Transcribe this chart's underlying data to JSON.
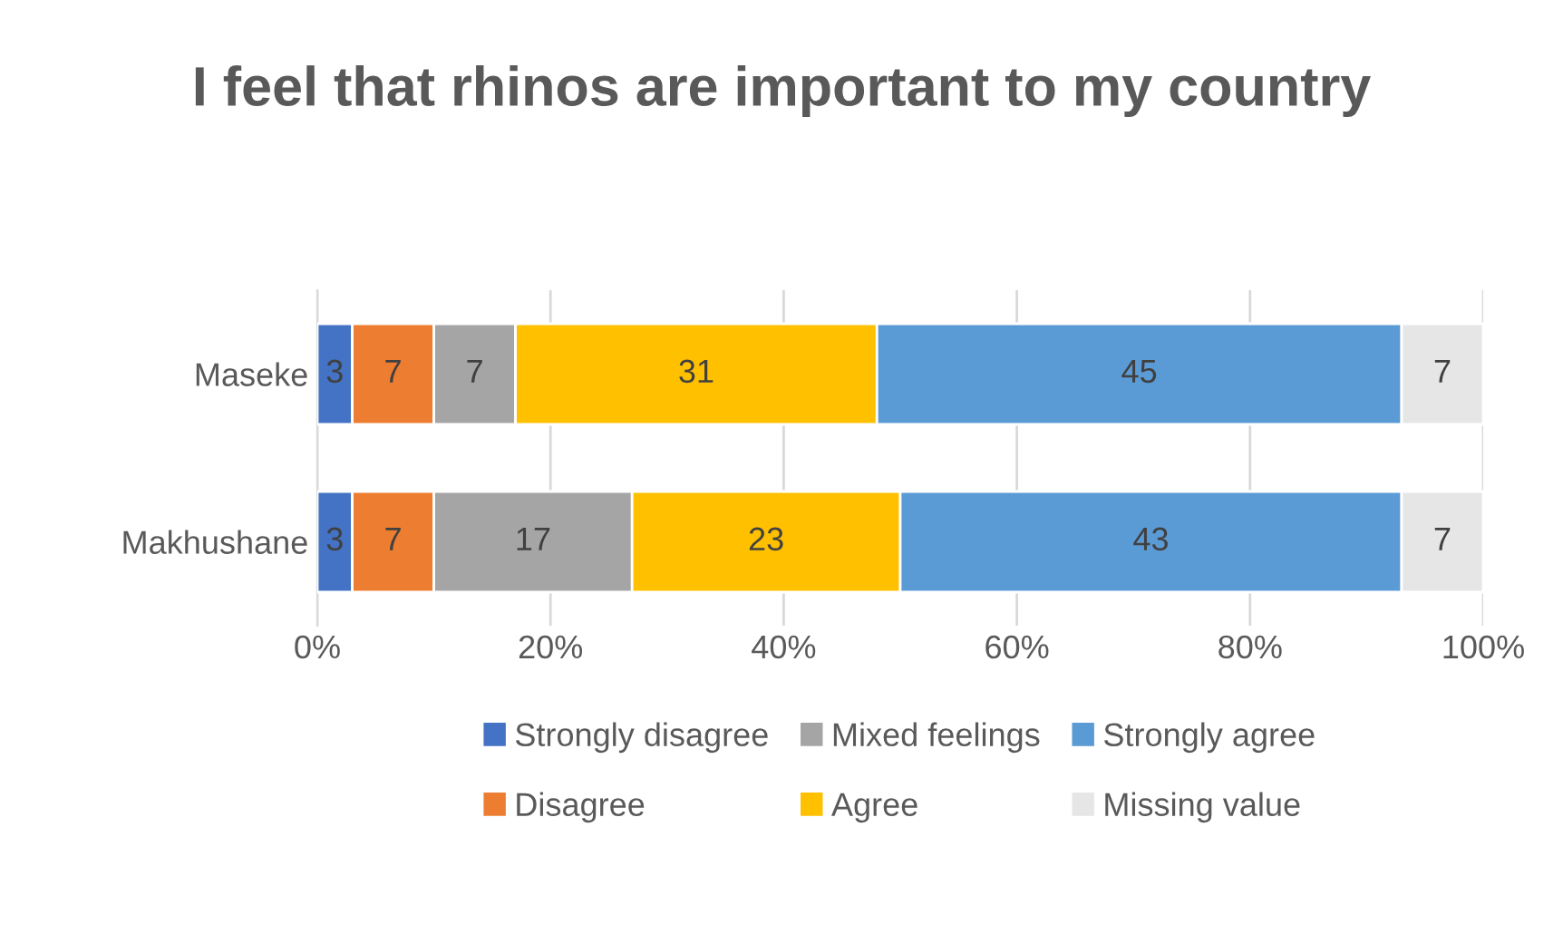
{
  "chart_data": {
    "type": "bar",
    "orientation": "horizontal",
    "stacked": true,
    "title": "I feel that rhinos are important to my country",
    "categories": [
      "Maseke",
      "Makhushane"
    ],
    "series": [
      {
        "name": "Strongly disagree",
        "color": "#4472c4",
        "values": [
          3,
          3
        ]
      },
      {
        "name": "Disagree",
        "color": "#ed7d31",
        "values": [
          7,
          7
        ]
      },
      {
        "name": "Mixed feelings",
        "color": "#a5a5a5",
        "values": [
          7,
          17
        ]
      },
      {
        "name": "Agree",
        "color": "#ffc000",
        "values": [
          31,
          23
        ]
      },
      {
        "name": "Strongly agree",
        "color": "#5b9bd5",
        "values": [
          45,
          43
        ]
      },
      {
        "name": "Missing value",
        "color": "#e7e6e6",
        "values": [
          7,
          7
        ]
      }
    ],
    "xlim": [
      0,
      100
    ],
    "xticks": [
      {
        "value": 0,
        "label": "0%"
      },
      {
        "value": 20,
        "label": "20%"
      },
      {
        "value": 40,
        "label": "40%"
      },
      {
        "value": 60,
        "label": "60%"
      },
      {
        "value": 80,
        "label": "80%"
      },
      {
        "value": 100,
        "label": "100%"
      }
    ],
    "grid": "x",
    "legend": "bottom",
    "data_labels": true
  }
}
